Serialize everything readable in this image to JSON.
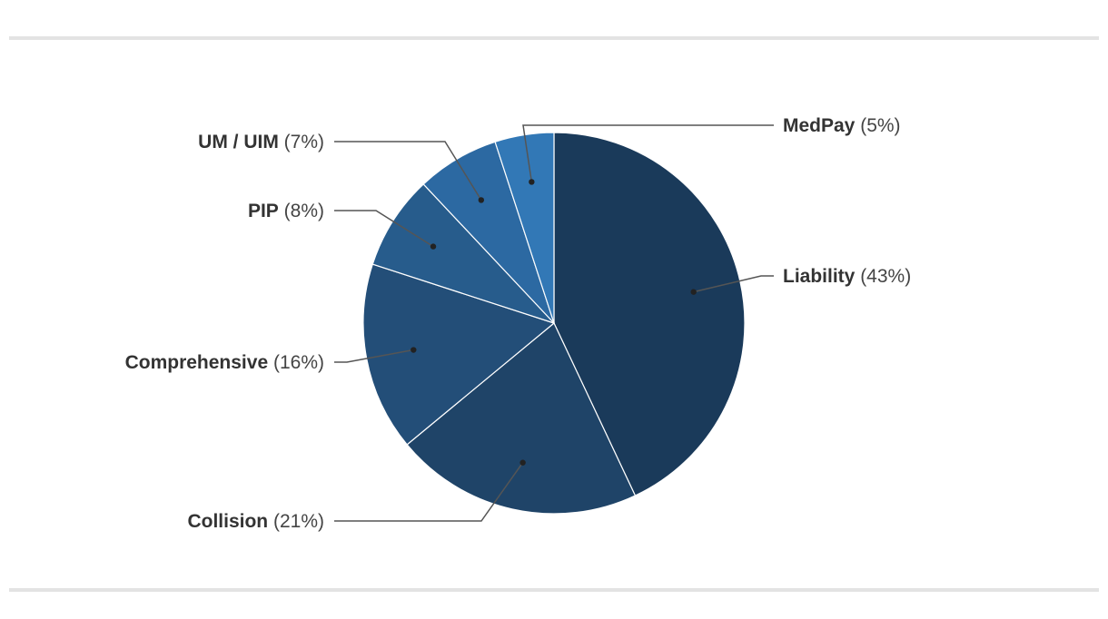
{
  "chart_data": {
    "type": "pie",
    "title": "",
    "start_angle_deg": 0,
    "direction": "clockwise",
    "slices": [
      {
        "label": "Liability",
        "value": 43,
        "display": "(43%)",
        "color": "#1a3a5a"
      },
      {
        "label": "Collision",
        "value": 21,
        "display": "(21%)",
        "color": "#1f4468"
      },
      {
        "label": "Comprehensive",
        "value": 16,
        "display": "(16%)",
        "color": "#234e78"
      },
      {
        "label": "PIP",
        "value": 8,
        "display": "(8%)",
        "color": "#275c8c"
      },
      {
        "label": "UM / UIM",
        "value": 7,
        "display": "(7%)",
        "color": "#2c69a2"
      },
      {
        "label": "MedPay",
        "value": 5,
        "display": "(5%)",
        "color": "#3278b6"
      }
    ],
    "label_sides": [
      "right",
      "left",
      "left",
      "left",
      "left",
      "right"
    ],
    "legend": "none"
  }
}
